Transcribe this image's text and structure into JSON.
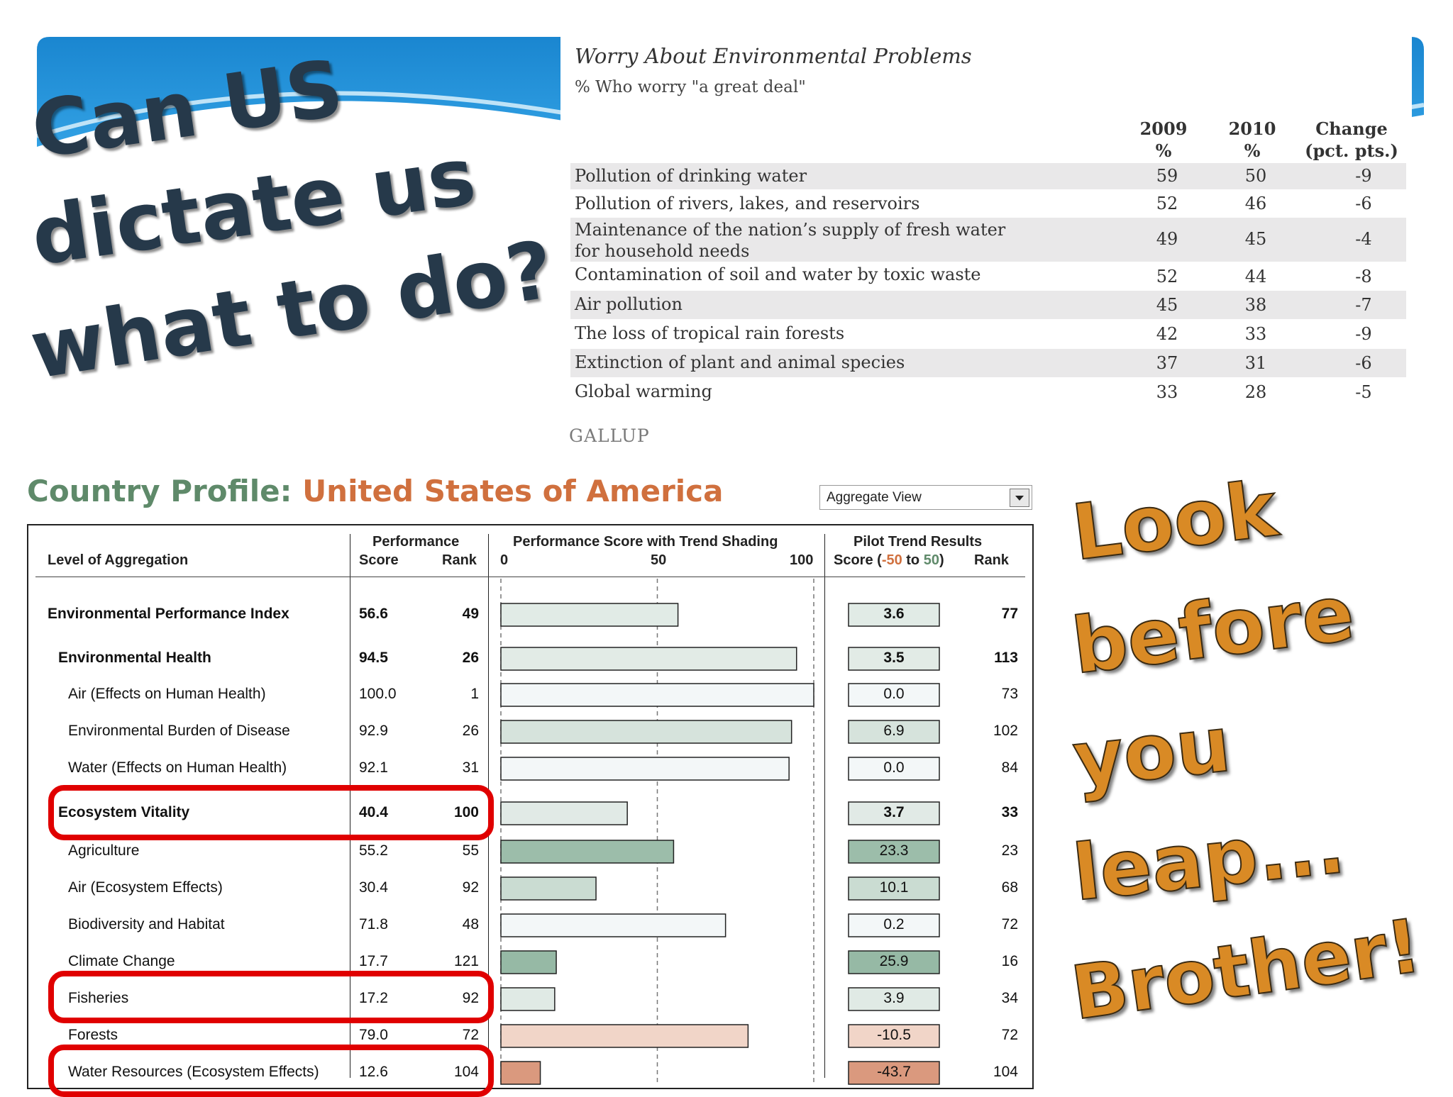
{
  "slide": {
    "colors": {
      "blue_top": "#1a86d0",
      "blue_mid": "#2ea3e6",
      "wave": "#ffffff",
      "slogan_text": "#26394a",
      "leap_text": "#d98a25",
      "highlight": "#e00000"
    },
    "slogan_left": [
      "Can US",
      "dictate us",
      "what to do?"
    ],
    "slogan_right": [
      "Look",
      "before",
      "you",
      "leap...",
      "Brother!"
    ]
  },
  "gallup": {
    "title": "Worry About Environmental Problems",
    "subtitle": "% Who worry \"a great deal\"",
    "columns": [
      {
        "line1": "2009",
        "line2": "%"
      },
      {
        "line1": "2010",
        "line2": "%"
      },
      {
        "line1": "Change",
        "line2": "(pct. pts.)"
      }
    ],
    "rows": [
      {
        "label": "Pollution of drinking water",
        "v2009": "59",
        "v2010": "50",
        "change": "-9"
      },
      {
        "label": "Pollution of rivers, lakes, and reservoirs",
        "v2009": "52",
        "v2010": "46",
        "change": "-6"
      },
      {
        "label": "Maintenance of the nation’s supply of fresh water for household needs",
        "v2009": "49",
        "v2010": "45",
        "change": "-4"
      },
      {
        "label": "Contamination of soil and water by toxic waste",
        "v2009": "52",
        "v2010": "44",
        "change": "-8"
      },
      {
        "label": "Air pollution",
        "v2009": "45",
        "v2010": "38",
        "change": "-7"
      },
      {
        "label": "The loss of tropical rain forests",
        "v2009": "42",
        "v2010": "33",
        "change": "-9"
      },
      {
        "label": "Extinction of plant and animal species",
        "v2009": "37",
        "v2010": "31",
        "change": "-6"
      },
      {
        "label": "Global warming",
        "v2009": "33",
        "v2010": "28",
        "change": "-5"
      }
    ],
    "source": "GALLUP"
  },
  "country_profile": {
    "title_lead": "Country Profile:",
    "country": "United States of America",
    "view_select": "Aggregate View",
    "headers": {
      "level": "Level of Aggregation",
      "performance": "Performance",
      "score": "Score",
      "rank": "Rank",
      "shading_title": "Performance Score with Trend Shading",
      "axis_0": "0",
      "axis_50": "50",
      "axis_100": "100",
      "pilot_title": "Pilot Trend Results",
      "pilot_score_prefix": "Score (",
      "pilot_neg": "-50",
      "pilot_to": " to ",
      "pilot_pos": "50",
      "pilot_suffix": ")",
      "pilot_rank": "Rank"
    },
    "colors": {
      "neg": "#d0703e",
      "pos": "#5f8a6a"
    }
  },
  "chart_data": {
    "type": "bar",
    "title": "Performance Score with Trend Shading",
    "xlim": [
      0,
      100
    ],
    "trend_range": [
      -50,
      50
    ],
    "rows": [
      {
        "label": "Environmental Performance Index",
        "level": 0,
        "bold": true,
        "score": 56.6,
        "rank": "49",
        "trend": "3.6",
        "trend_value": 3.6,
        "trend_rank": "77",
        "highlight": false
      },
      {
        "label": "Environmental Health",
        "level": 1,
        "bold": true,
        "score": 94.5,
        "rank": "26",
        "trend": "3.5",
        "trend_value": 3.5,
        "trend_rank": "113",
        "highlight": false
      },
      {
        "label": "Air (Effects on Human Health)",
        "level": 2,
        "bold": false,
        "score": 100.0,
        "rank": "1",
        "trend": "0.0",
        "trend_value": 0.0,
        "trend_rank": "73",
        "highlight": false
      },
      {
        "label": "Environmental Burden of Disease",
        "level": 2,
        "bold": false,
        "score": 92.9,
        "rank": "26",
        "trend": "6.9",
        "trend_value": 6.9,
        "trend_rank": "102",
        "highlight": false
      },
      {
        "label": "Water (Effects on Human Health)",
        "level": 2,
        "bold": false,
        "score": 92.1,
        "rank": "31",
        "trend": "0.0",
        "trend_value": 0.0,
        "trend_rank": "84",
        "highlight": false
      },
      {
        "label": "Ecosystem Vitality",
        "level": 1,
        "bold": true,
        "score": 40.4,
        "rank": "100",
        "trend": "3.7",
        "trend_value": 3.7,
        "trend_rank": "33",
        "highlight": true
      },
      {
        "label": "Agriculture",
        "level": 2,
        "bold": false,
        "score": 55.2,
        "rank": "55",
        "trend": "23.3",
        "trend_value": 23.3,
        "trend_rank": "23",
        "highlight": false
      },
      {
        "label": "Air (Ecosystem Effects)",
        "level": 2,
        "bold": false,
        "score": 30.4,
        "rank": "92",
        "trend": "10.1",
        "trend_value": 10.1,
        "trend_rank": "68",
        "highlight": false
      },
      {
        "label": "Biodiversity and Habitat",
        "level": 2,
        "bold": false,
        "score": 71.8,
        "rank": "48",
        "trend": "0.2",
        "trend_value": 0.2,
        "trend_rank": "72",
        "highlight": false
      },
      {
        "label": "Climate Change",
        "level": 2,
        "bold": false,
        "score": 17.7,
        "rank": "121",
        "trend": "25.9",
        "trend_value": 25.9,
        "trend_rank": "16",
        "highlight": false
      },
      {
        "label": "Fisheries",
        "level": 2,
        "bold": false,
        "score": 17.2,
        "rank": "92",
        "trend": "3.9",
        "trend_value": 3.9,
        "trend_rank": "34",
        "highlight": true
      },
      {
        "label": "Forests",
        "level": 2,
        "bold": false,
        "score": 79.0,
        "rank": "72",
        "trend": "-10.5",
        "trend_value": -10.5,
        "trend_rank": "72",
        "highlight": false
      },
      {
        "label": "Water Resources (Ecosystem Effects)",
        "level": 2,
        "bold": false,
        "score": 12.6,
        "rank": "104",
        "trend": "-43.7",
        "trend_value": -43.7,
        "trend_rank": "104",
        "highlight": true
      }
    ]
  }
}
